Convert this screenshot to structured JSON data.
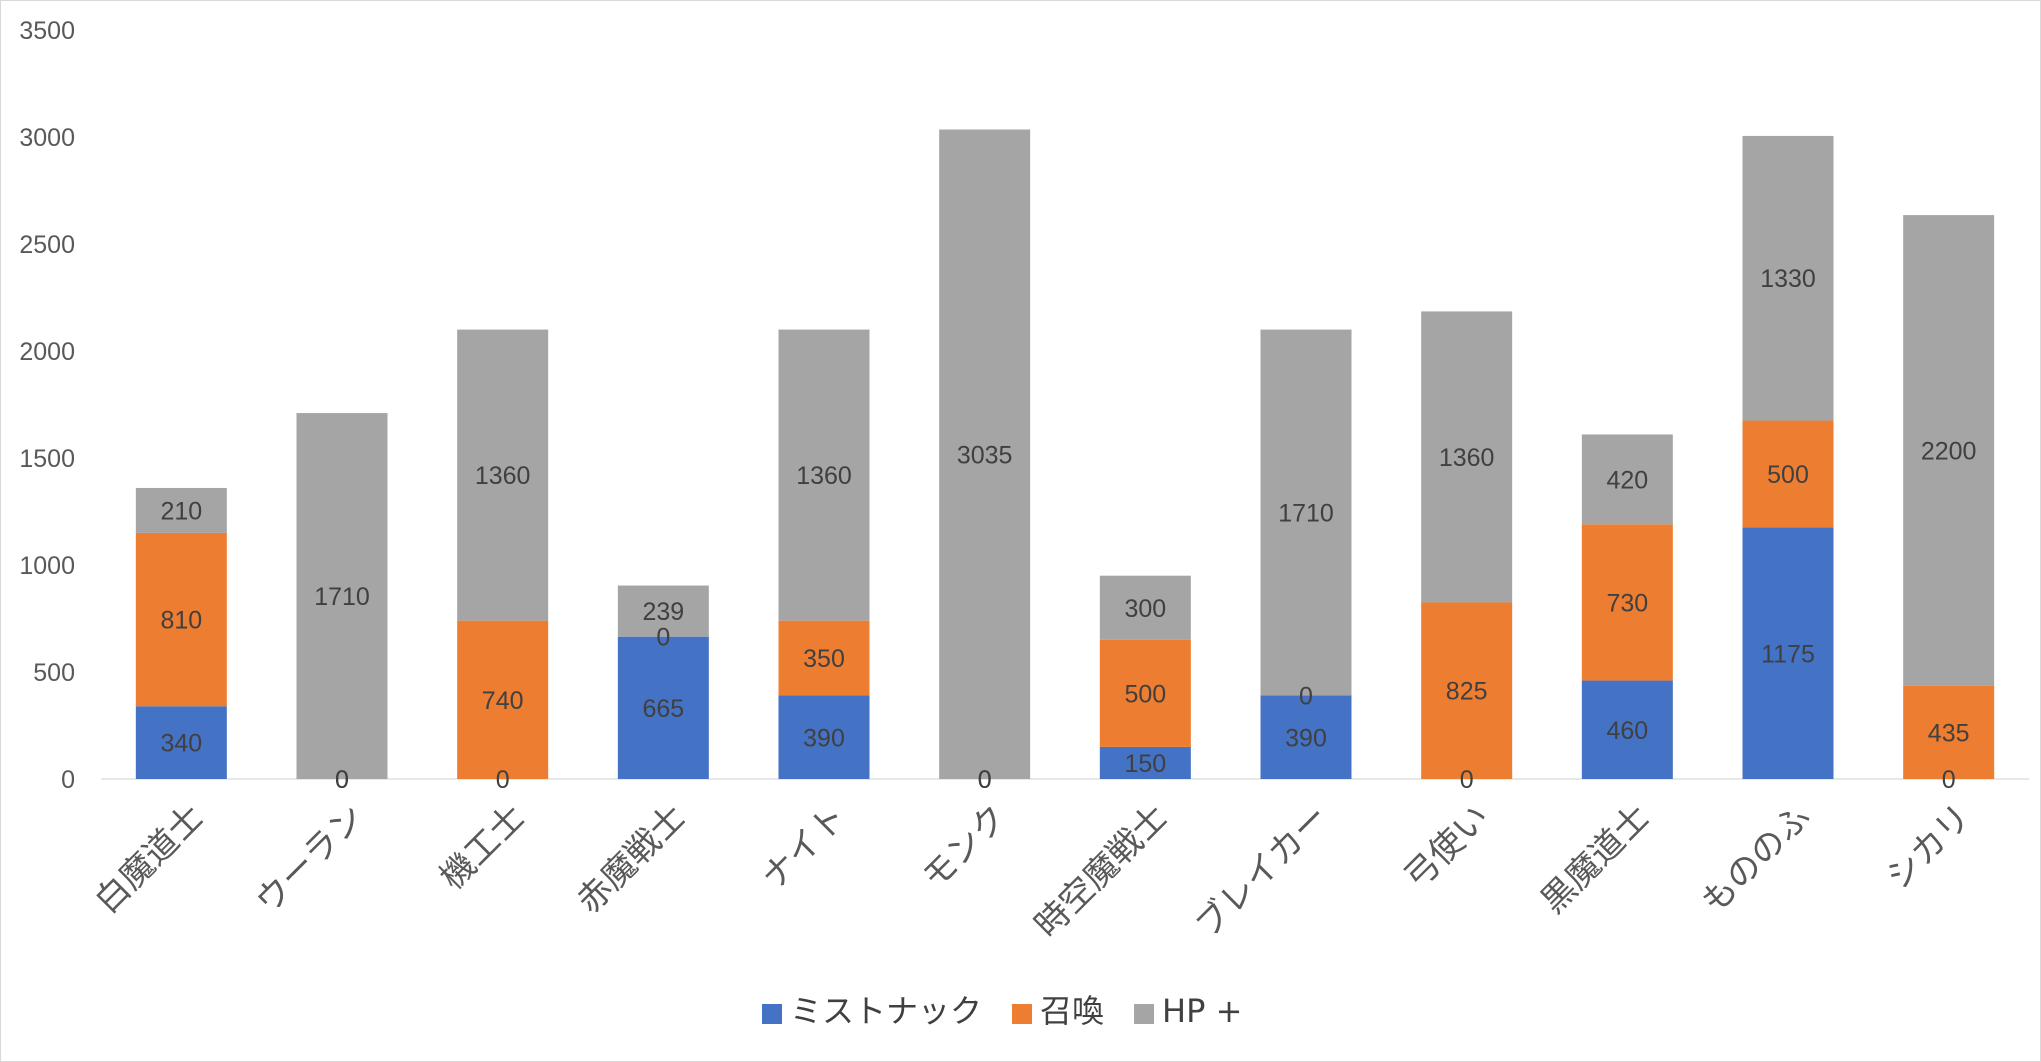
{
  "chart_data": {
    "type": "bar",
    "stacked": true,
    "title": "",
    "xlabel": "",
    "ylabel": "",
    "ylim": [
      0,
      3500
    ],
    "yticks": [
      0,
      500,
      1000,
      1500,
      2000,
      2500,
      3000,
      3500
    ],
    "grid": false,
    "legend_position": "bottom",
    "categories": [
      "白魔道士",
      "ウーラン",
      "機工士",
      "赤魔戦士",
      "ナイト",
      "モンク",
      "時空魔戦士",
      "ブレイカー",
      "弓使い",
      "黒魔道士",
      "もののふ",
      "シカリ"
    ],
    "series": [
      {
        "name": "ミストナック",
        "color": "#4472C4",
        "values": [
          340,
          0,
          0,
          665,
          390,
          0,
          150,
          390,
          0,
          460,
          1175,
          0
        ]
      },
      {
        "name": "召喚",
        "color": "#ED7D31",
        "values": [
          810,
          0,
          740,
          0,
          350,
          0,
          500,
          0,
          825,
          730,
          500,
          435
        ]
      },
      {
        "name": "HP +",
        "color": "#A5A5A5",
        "values": [
          210,
          1710,
          1360,
          239,
          1360,
          3035,
          300,
          1710,
          1360,
          420,
          1330,
          2200
        ]
      }
    ]
  }
}
